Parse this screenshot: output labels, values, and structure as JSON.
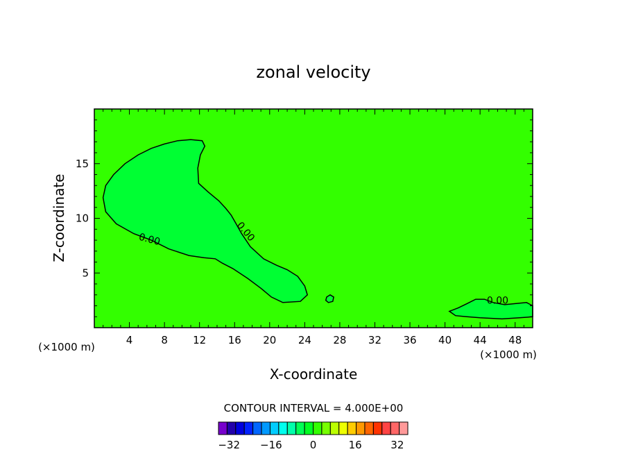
{
  "chart_data": {
    "type": "contour",
    "title": "zonal velocity",
    "xlabel": "X-coordinate",
    "ylabel": "Z-coordinate",
    "x_unit": "(×1000 m)",
    "z_unit": "(×1000 m)",
    "xlim": [
      0,
      50
    ],
    "ylim": [
      0,
      20
    ],
    "x_ticks": [
      4,
      8,
      12,
      16,
      20,
      24,
      28,
      32,
      36,
      40,
      44,
      48
    ],
    "y_ticks": [
      5,
      10,
      15
    ],
    "background_color": "#33ff00",
    "negative_region_color": "#00ff33",
    "contour_label": "0.00",
    "contour_interval_text": "CONTOUR INTERVAL = 4.000E+00",
    "colorbar": {
      "min": -36,
      "max": 36,
      "step": 4,
      "tick_labels": [
        -32,
        -16,
        0,
        16,
        32
      ],
      "colors": [
        "#7700cc",
        "#2200aa",
        "#0000dd",
        "#0022ff",
        "#0066ff",
        "#0099ff",
        "#00ccff",
        "#00ffee",
        "#00ffaa",
        "#00ff55",
        "#00ff22",
        "#33ff00",
        "#77ff00",
        "#bbff00",
        "#eeff00",
        "#ffcc00",
        "#ff9900",
        "#ff6600",
        "#ff3300",
        "#ff4444",
        "#ff6666",
        "#ff9999"
      ]
    },
    "contours": [
      {
        "name": "main-plume",
        "level": 0,
        "points": [
          [
            1.0,
            11.9
          ],
          [
            1.3,
            13.0
          ],
          [
            2.2,
            14.0
          ],
          [
            3.5,
            15.0
          ],
          [
            5.0,
            15.8
          ],
          [
            6.5,
            16.4
          ],
          [
            8.0,
            16.8
          ],
          [
            9.5,
            17.1
          ],
          [
            11.0,
            17.2
          ],
          [
            12.3,
            17.1
          ],
          [
            12.6,
            16.6
          ],
          [
            12.1,
            15.8
          ],
          [
            11.8,
            14.6
          ],
          [
            11.9,
            13.2
          ],
          [
            13.0,
            12.4
          ],
          [
            14.2,
            11.6
          ],
          [
            15.0,
            10.9
          ],
          [
            15.6,
            10.3
          ],
          [
            16.1,
            9.6
          ],
          [
            16.8,
            8.6
          ],
          [
            17.8,
            7.4
          ],
          [
            19.3,
            6.3
          ],
          [
            20.8,
            5.7
          ],
          [
            22.0,
            5.3
          ],
          [
            23.2,
            4.7
          ],
          [
            24.0,
            3.8
          ],
          [
            24.3,
            3.0
          ],
          [
            23.5,
            2.4
          ],
          [
            21.5,
            2.3
          ],
          [
            20.2,
            2.8
          ],
          [
            19.0,
            3.6
          ],
          [
            17.5,
            4.5
          ],
          [
            15.8,
            5.4
          ],
          [
            14.6,
            5.9
          ],
          [
            13.8,
            6.3
          ],
          [
            12.5,
            6.4
          ],
          [
            10.8,
            6.6
          ],
          [
            8.5,
            7.2
          ],
          [
            6.5,
            8.0
          ],
          [
            4.5,
            8.6
          ],
          [
            2.5,
            9.5
          ],
          [
            1.3,
            10.6
          ]
        ]
      },
      {
        "name": "small-loop",
        "level": 0,
        "points": [
          [
            26.5,
            2.8
          ],
          [
            26.9,
            3.0
          ],
          [
            27.3,
            2.8
          ],
          [
            27.2,
            2.4
          ],
          [
            26.7,
            2.3
          ],
          [
            26.4,
            2.5
          ]
        ]
      },
      {
        "name": "right-bump",
        "level": 0,
        "points": [
          [
            40.5,
            1.5
          ],
          [
            41.5,
            1.8
          ],
          [
            42.5,
            2.2
          ],
          [
            43.5,
            2.6
          ],
          [
            44.5,
            2.6
          ],
          [
            45.5,
            2.3
          ],
          [
            46.8,
            2.1
          ],
          [
            48.0,
            2.2
          ],
          [
            49.3,
            2.3
          ],
          [
            50.0,
            2.0
          ],
          [
            50.0,
            1.0
          ],
          [
            48.5,
            0.9
          ],
          [
            46.5,
            0.8
          ],
          [
            44.0,
            0.9
          ],
          [
            42.5,
            1.0
          ],
          [
            41.2,
            1.1
          ]
        ]
      }
    ],
    "label_positions": [
      {
        "text": "0.00",
        "x": 6.2,
        "y": 7.8,
        "angle": 15
      },
      {
        "text": "0.00",
        "x": 17.0,
        "y": 8.6,
        "angle": 50
      },
      {
        "text": "0.00",
        "x": 46.0,
        "y": 2.2,
        "angle": 0
      }
    ]
  }
}
